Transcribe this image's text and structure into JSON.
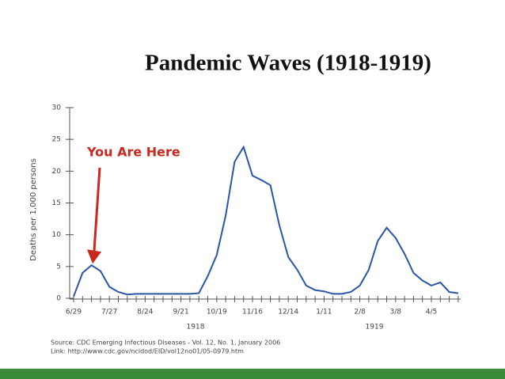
{
  "chart_data": {
    "type": "line",
    "title": "Pandemic Waves (1918-1919)",
    "y_label": "Deaths per 1,000 persons",
    "annotation": "You Are Here",
    "year_labels": [
      "1918",
      "1919"
    ],
    "source": [
      "Source: CDC Emerging Infectious Diseases - Vol. 12, No. 1, January 2006",
      "Link: http://www.cdc.gov/ncidod/EID/vol12no01/05-0979.htm"
    ],
    "categories": [
      "6/29",
      null,
      null,
      null,
      "7/27",
      null,
      null,
      null,
      "8/24",
      null,
      null,
      null,
      "9/21",
      null,
      null,
      null,
      "10/19",
      null,
      null,
      null,
      "11/16",
      null,
      null,
      null,
      "12/14",
      null,
      null,
      null,
      "1/11",
      null,
      null,
      null,
      "2/8",
      null,
      null,
      null,
      "3/8",
      null,
      null,
      null,
      "4/5",
      null,
      null,
      null
    ],
    "series": [
      {
        "name": "Deaths",
        "color": "#2b55a8",
        "values": [
          0.3,
          4,
          5.2,
          4.3,
          1.8,
          1.0,
          0.6,
          0.7,
          0.7,
          0.7,
          0.7,
          0.7,
          0.7,
          0.7,
          0.8,
          3.5,
          6.8,
          13,
          21.5,
          23.8,
          19.3,
          18.6,
          17.8,
          11.5,
          6.5,
          4.5,
          2,
          1.3,
          1.1,
          0.7,
          0.7,
          1.0,
          2,
          4.5,
          9,
          11.1,
          9.5,
          7,
          4,
          2.8,
          2,
          2.5,
          1,
          0.8
        ]
      }
    ],
    "annotation_color": "#c8281e",
    "ylim": [
      0,
      30
    ],
    "yticks": [
      0,
      5,
      10,
      15,
      20,
      25,
      30
    ]
  }
}
